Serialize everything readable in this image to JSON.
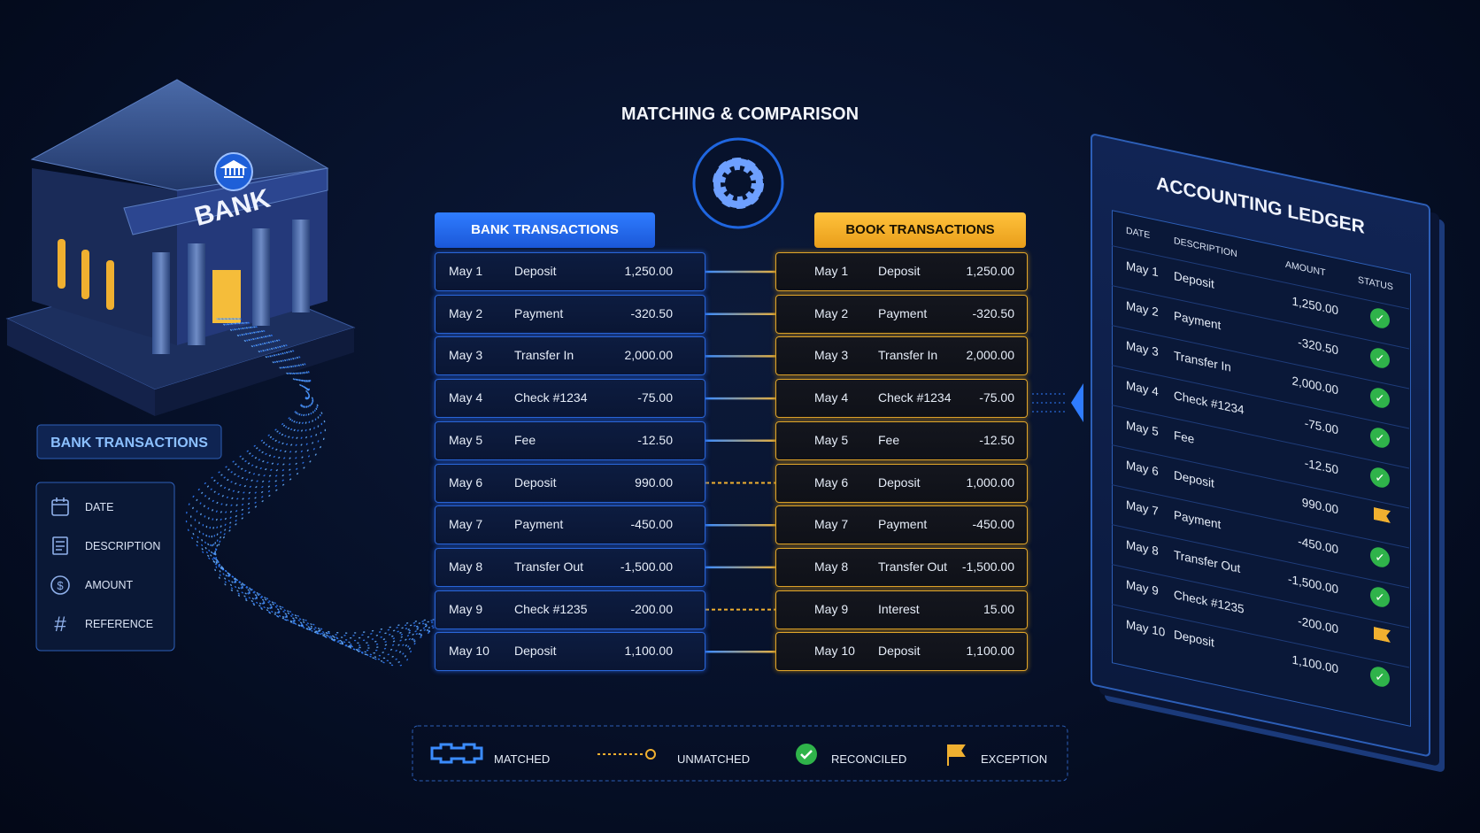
{
  "title": "MATCHING & COMPARISON",
  "bank": {
    "label": "BANK",
    "panel_title": "BANK TRANSACTIONS",
    "fields": [
      "DATE",
      "DESCRIPTION",
      "AMOUNT",
      "REFERENCE"
    ]
  },
  "bank_transactions": {
    "header": "BANK TRANSACTIONS",
    "rows": [
      [
        "May 1",
        "Deposit",
        "1,250.00"
      ],
      [
        "May 2",
        "Payment",
        "-320.50"
      ],
      [
        "May 3",
        "Transfer In",
        "2,000.00"
      ],
      [
        "May 4",
        "Check #1234",
        "-75.00"
      ],
      [
        "May 5",
        "Fee",
        "-12.50"
      ],
      [
        "May 6",
        "Deposit",
        "990.00"
      ],
      [
        "May 7",
        "Payment",
        "-450.00"
      ],
      [
        "May 8",
        "Transfer Out",
        "-1,500.00"
      ],
      [
        "May 9",
        "Check #1235",
        "-200.00"
      ],
      [
        "May 10",
        "Deposit",
        "1,100.00"
      ]
    ]
  },
  "book_transactions": {
    "header": "BOOK TRANSACTIONS",
    "rows": [
      [
        "May 1",
        "Deposit",
        "1,250.00"
      ],
      [
        "May 2",
        "Payment",
        "-320.50"
      ],
      [
        "May 3",
        "Transfer In",
        "2,000.00"
      ],
      [
        "May 4",
        "Check #1234",
        "-75.00"
      ],
      [
        "May 5",
        "Fee",
        "-12.50"
      ],
      [
        "May 6",
        "Deposit",
        "1,000.00"
      ],
      [
        "May 7",
        "Payment",
        "-450.00"
      ],
      [
        "May 8",
        "Transfer Out",
        "-1,500.00"
      ],
      [
        "May 9",
        "Interest",
        "15.00"
      ],
      [
        "May 10",
        "Deposit",
        "1,100.00"
      ]
    ]
  },
  "links": [
    "matched",
    "matched",
    "matched",
    "matched",
    "matched",
    "unmatched",
    "matched",
    "matched",
    "unmatched",
    "matched"
  ],
  "ledger": {
    "title": "ACCOUNTING LEDGER",
    "columns": [
      "DATE",
      "DESCRIPTION",
      "AMOUNT",
      "STATUS"
    ],
    "rows": [
      [
        "May 1",
        "Deposit",
        "1,250.00"
      ],
      [
        "May 2",
        "Payment",
        "-320.50"
      ],
      [
        "May 3",
        "Transfer In",
        "2,000.00"
      ],
      [
        "May 4",
        "Check #1234",
        "-75.00"
      ],
      [
        "May 5",
        "Fee",
        "-12.50"
      ],
      [
        "May 6",
        "Deposit",
        "990.00"
      ],
      [
        "May 7",
        "Payment",
        "-450.00"
      ],
      [
        "May 8",
        "Transfer Out",
        "-1,500.00"
      ],
      [
        "May 9",
        "Check #1235",
        "-200.00"
      ],
      [
        "May 10",
        "Deposit",
        "1,100.00"
      ]
    ],
    "status": [
      "reconciled",
      "reconciled",
      "reconciled",
      "reconciled",
      "reconciled",
      "exception",
      "reconciled",
      "reconciled",
      "exception",
      "reconciled"
    ]
  },
  "legend": [
    "MATCHED",
    "UNMATCHED",
    "RECONCILED",
    "EXCEPTION"
  ]
}
